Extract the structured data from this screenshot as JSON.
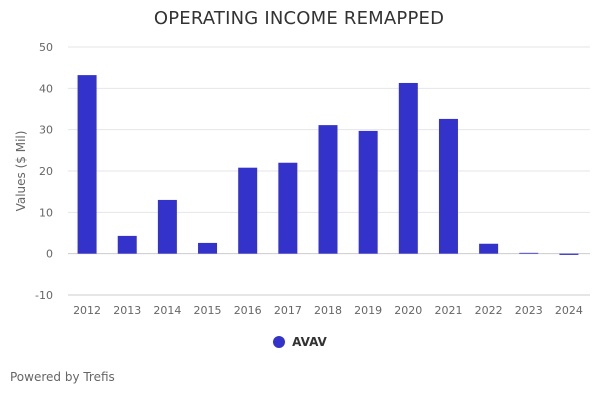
{
  "chart_data": {
    "type": "bar",
    "title": "OPERATING INCOME REMAPPED",
    "xlabel": "",
    "ylabel": "Values ($ Mil)",
    "ylim": [
      -10,
      50
    ],
    "yticks": [
      50,
      40,
      30,
      20,
      10,
      0,
      -10
    ],
    "grid": true,
    "legend_position": "bottom",
    "categories": [
      "2012",
      "2013",
      "2014",
      "2015",
      "2016",
      "2017",
      "2018",
      "2019",
      "2020",
      "2021",
      "2022",
      "2023",
      "2024"
    ],
    "series": [
      {
        "name": "AVAV",
        "color": "#3333cc",
        "values": [
          43.2,
          4.3,
          13.0,
          2.6,
          20.8,
          22.0,
          31.1,
          29.7,
          41.3,
          32.6,
          2.4,
          0.2,
          -0.3
        ]
      }
    ]
  },
  "footer": {
    "credit": "Powered by Trefis"
  },
  "colors": {
    "grid": "#e6e6e6",
    "tick_text": "#666666",
    "title": "#333333"
  }
}
